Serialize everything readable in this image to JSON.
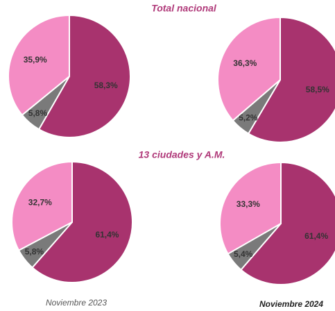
{
  "headings": [
    "Total nacional",
    "13 ciudades y A.M."
  ],
  "columns": [
    "Noviembre 2023",
    "Noviembre 2024"
  ],
  "chart_data": [
    {
      "type": "pie",
      "values": [
        58.3,
        5.8,
        35.9
      ],
      "value_labels": [
        "58,3%",
        "5,8%",
        "35,9%"
      ],
      "colors": [
        "#a8336e",
        "#7a7a7a",
        "#f48cc4"
      ]
    },
    {
      "type": "pie",
      "values": [
        58.5,
        5.2,
        36.3
      ],
      "value_labels": [
        "58,5%",
        "5,2%",
        "36,3%"
      ],
      "colors": [
        "#a8336e",
        "#7a7a7a",
        "#f48cc4"
      ]
    },
    {
      "type": "pie",
      "values": [
        61.4,
        5.8,
        32.7
      ],
      "value_labels": [
        "61,4%",
        "5,8%",
        "32,7%"
      ],
      "colors": [
        "#a8336e",
        "#7a7a7a",
        "#f48cc4"
      ]
    },
    {
      "type": "pie",
      "values": [
        61.4,
        5.4,
        33.3
      ],
      "value_labels": [
        "61,4%",
        "5,4%",
        "33,3%"
      ],
      "colors": [
        "#a8336e",
        "#7a7a7a",
        "#f48cc4"
      ]
    }
  ]
}
